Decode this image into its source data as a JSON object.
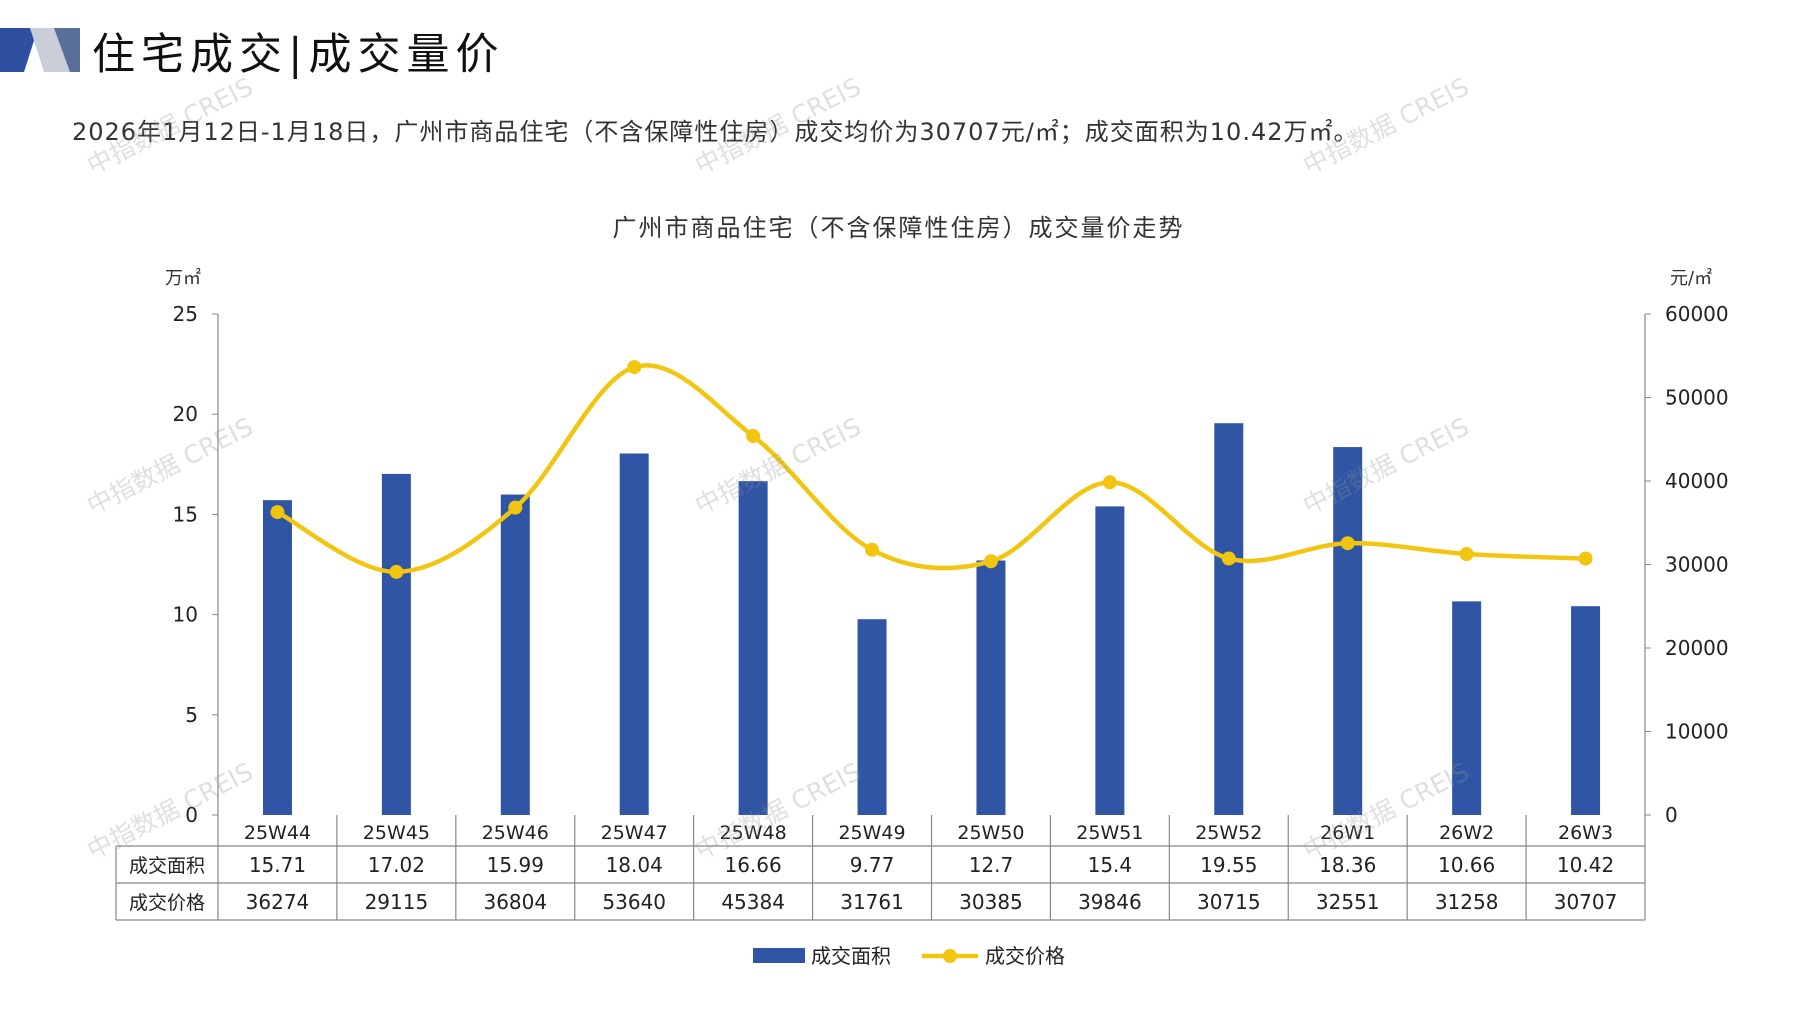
{
  "header": {
    "title": "住宅成交|成交量价",
    "summary": "2026年1月12日-1月18日，广州市商品住宅（不含保障性住房）成交均价为30707元/㎡；成交面积为10.42万㎡。"
  },
  "colors": {
    "bar": "#2f55a4",
    "line": "#f2c511",
    "grid": "#888888"
  },
  "watermark": "中指数据 CREIS",
  "chart_data": {
    "type": "bar",
    "title": "广州市商品住宅（不含保障性住房）成交量价走势",
    "categories": [
      "25W44",
      "25W45",
      "25W46",
      "25W47",
      "25W48",
      "25W49",
      "25W50",
      "25W51",
      "25W52",
      "26W1",
      "26W2",
      "26W3"
    ],
    "series": [
      {
        "name": "成交面积",
        "type": "bar",
        "axis": "left",
        "values": [
          15.71,
          17.02,
          15.99,
          18.04,
          16.66,
          9.77,
          12.7,
          15.4,
          19.55,
          18.36,
          10.66,
          10.42
        ],
        "labels": [
          "15.71",
          "17.02",
          "15.99",
          "18.04",
          "16.66",
          "9.77",
          "12.7",
          "15.4",
          "19.55",
          "18.36",
          "10.66",
          "10.42"
        ]
      },
      {
        "name": "成交价格",
        "type": "line",
        "axis": "right",
        "values": [
          36274,
          29115,
          36804,
          53640,
          45384,
          31761,
          30385,
          39846,
          30715,
          32551,
          31258,
          30707
        ],
        "labels": [
          "36274",
          "29115",
          "36804",
          "53640",
          "45384",
          "31761",
          "30385",
          "39846",
          "30715",
          "32551",
          "31258",
          "30707"
        ]
      }
    ],
    "y_left": {
      "label": "万㎡",
      "min": 0,
      "max": 25,
      "ticks": [
        "0",
        "5",
        "10",
        "15",
        "20",
        "25"
      ]
    },
    "y_right": {
      "label": "元/㎡",
      "min": 0,
      "max": 60000,
      "ticks": [
        "0",
        "10000",
        "20000",
        "30000",
        "40000",
        "50000",
        "60000"
      ]
    },
    "legend": [
      "成交面积",
      "成交价格"
    ]
  }
}
